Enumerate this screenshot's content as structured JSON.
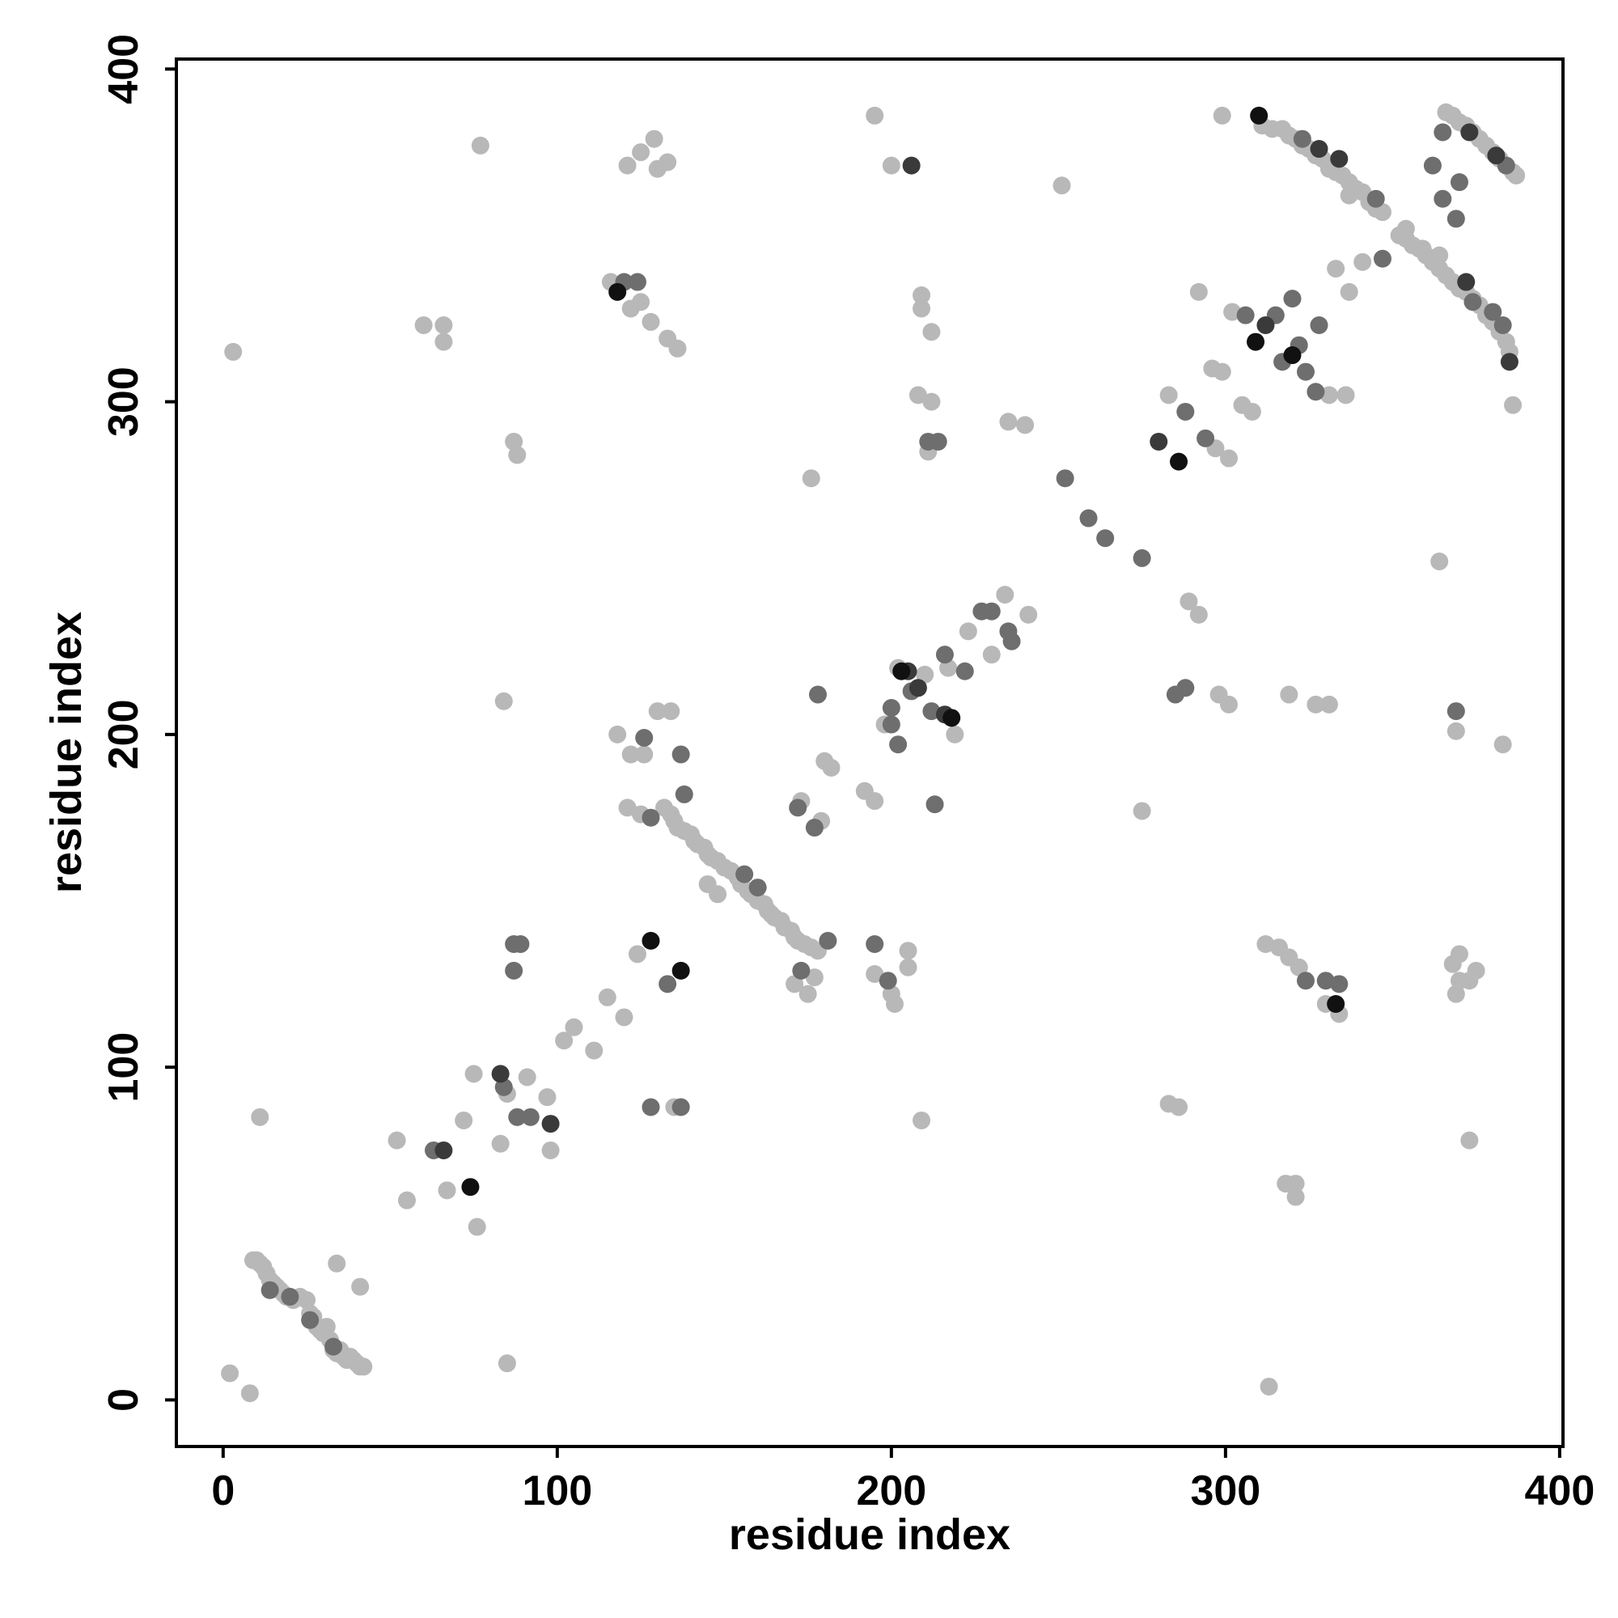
{
  "chart_data": {
    "type": "scatter",
    "xlabel": "residue index",
    "ylabel": "residue index",
    "xlim": [
      -14,
      401
    ],
    "ylim": [
      -14,
      403
    ],
    "xticks": [
      0,
      100,
      200,
      300,
      400
    ],
    "yticks": [
      0,
      100,
      200,
      300,
      400
    ],
    "grid": false,
    "series": [
      {
        "color": "#b8b8b8",
        "x": [
          2,
          8,
          11,
          34,
          41,
          85,
          9,
          10,
          11,
          12,
          13,
          14,
          15,
          16,
          17,
          18,
          19,
          21,
          23,
          25,
          26,
          27,
          28,
          29,
          30,
          31,
          32,
          33,
          34,
          35,
          36,
          37,
          38,
          39,
          40,
          41,
          42,
          52,
          55,
          67,
          72,
          76,
          75,
          83,
          85,
          91,
          97,
          98,
          102,
          105,
          111,
          115,
          120,
          124,
          135,
          132,
          134,
          135,
          136,
          138,
          140,
          141,
          142,
          144,
          145,
          146,
          148,
          150,
          152,
          154,
          155,
          157,
          158,
          160,
          162,
          163,
          164,
          165,
          167,
          168,
          170,
          171,
          172,
          174,
          176,
          178,
          145,
          148,
          121,
          125,
          118,
          122,
          126,
          130,
          134,
          173,
          179,
          177,
          175,
          171,
          180,
          182,
          192,
          195,
          198,
          202,
          210,
          217,
          219,
          223,
          230,
          234,
          241,
          195,
          200,
          201,
          205,
          205,
          209,
          121,
          125,
          129,
          133,
          130,
          116,
          125,
          128,
          133,
          136,
          122,
          60,
          66,
          66,
          3,
          77,
          87,
          88,
          84,
          195,
          200,
          209,
          209,
          212,
          208,
          212,
          211,
          251,
          235,
          240,
          176,
          275,
          283,
          297,
          301,
          296,
          299,
          305,
          308,
          292,
          302,
          331,
          336,
          333,
          341,
          337,
          311,
          314,
          317,
          319,
          321,
          323,
          325,
          327,
          329,
          331,
          333,
          335,
          337,
          339,
          341,
          343,
          345,
          347,
          352,
          354,
          356,
          358,
          360,
          362,
          364,
          366,
          368,
          370,
          372,
          374,
          376,
          378,
          380,
          382,
          384,
          385,
          366,
          368,
          370,
          372,
          374,
          376,
          378,
          380,
          382,
          384,
          386,
          299,
          387,
          386,
          289,
          292,
          298,
          301,
          319,
          327,
          331,
          364,
          369,
          383,
          283,
          286,
          373,
          312,
          316,
          319,
          322,
          330,
          334,
          321,
          318,
          321,
          313,
          368,
          370,
          370,
          373,
          375,
          369,
          337,
          354,
          359,
          364
        ],
        "values": [
          8,
          2,
          85,
          41,
          34,
          11,
          42,
          42,
          41,
          40,
          38,
          36,
          35,
          34,
          33,
          32,
          31,
          30,
          31,
          30,
          26,
          25,
          22,
          21,
          20,
          22,
          18,
          15,
          14,
          15,
          13,
          12,
          13,
          12,
          11,
          10,
          10,
          78,
          60,
          63,
          84,
          52,
          98,
          77,
          92,
          97,
          91,
          75,
          108,
          112,
          105,
          121,
          115,
          134,
          88,
          178,
          176,
          174,
          172,
          171,
          170,
          168,
          167,
          166,
          164,
          163,
          162,
          160,
          159,
          157,
          155,
          153,
          152,
          150,
          149,
          147,
          146,
          145,
          144,
          142,
          141,
          139,
          138,
          137,
          136,
          135,
          155,
          152,
          178,
          176,
          200,
          194,
          194,
          207,
          207,
          180,
          174,
          127,
          122,
          125,
          192,
          190,
          183,
          180,
          203,
          220,
          218,
          220,
          200,
          231,
          224,
          242,
          236,
          128,
          122,
          119,
          135,
          130,
          84,
          371,
          375,
          379,
          372,
          370,
          336,
          330,
          324,
          319,
          316,
          328,
          323,
          323,
          318,
          315,
          377,
          288,
          284,
          210,
          386,
          371,
          332,
          328,
          321,
          302,
          300,
          285,
          365,
          294,
          293,
          277,
          177,
          302,
          286,
          283,
          310,
          309,
          299,
          297,
          333,
          327,
          302,
          302,
          340,
          342,
          333,
          383,
          382,
          382,
          380,
          379,
          377,
          376,
          374,
          373,
          370,
          369,
          368,
          366,
          364,
          363,
          360,
          358,
          357,
          350,
          349,
          347,
          346,
          344,
          342,
          340,
          338,
          336,
          334,
          333,
          331,
          329,
          326,
          324,
          321,
          318,
          315,
          387,
          386,
          384,
          383,
          381,
          379,
          377,
          375,
          373,
          371,
          369,
          386,
          368,
          299,
          240,
          236,
          212,
          209,
          212,
          209,
          209,
          252,
          201,
          197,
          89,
          88,
          78,
          137,
          136,
          133,
          130,
          119,
          116,
          65,
          65,
          61,
          4,
          131,
          134,
          126,
          126,
          129,
          122,
          362,
          352,
          346,
          344
        ]
      },
      {
        "color": "#6e6e6e",
        "x": [
          14,
          20,
          26,
          33,
          63,
          84,
          88,
          92,
          128,
          137,
          87,
          89,
          87,
          128,
          126,
          137,
          138,
          172,
          177,
          181,
          173,
          156,
          160,
          178,
          200,
          200,
          206,
          202,
          212,
          216,
          222,
          227,
          230,
          235,
          236,
          195,
          199,
          213,
          211,
          214,
          124,
          120,
          252,
          259,
          264,
          275,
          288,
          294,
          306,
          315,
          317,
          322,
          324,
          327,
          320,
          328,
          347,
          345,
          362,
          365,
          370,
          369,
          374,
          380,
          383,
          365,
          384,
          323,
          285,
          288,
          369,
          324,
          330,
          334,
          133
        ],
        "values": [
          33,
          31,
          24,
          16,
          75,
          94,
          85,
          85,
          88,
          88,
          137,
          137,
          129,
          175,
          199,
          194,
          182,
          178,
          172,
          138,
          129,
          158,
          154,
          212,
          203,
          208,
          213,
          197,
          207,
          224,
          219,
          237,
          237,
          231,
          228,
          137,
          126,
          179,
          288,
          288,
          336,
          336,
          277,
          265,
          259,
          253,
          297,
          289,
          326,
          326,
          312,
          317,
          309,
          303,
          331,
          323,
          343,
          361,
          371,
          361,
          366,
          355,
          330,
          327,
          323,
          381,
          371,
          379,
          212,
          214,
          207,
          126,
          126,
          125,
          125
        ]
      },
      {
        "color": "#3a3a3a",
        "x": [
          66,
          83,
          98,
          205,
          216,
          208,
          280,
          312,
          328,
          334,
          372,
          385,
          373,
          381,
          206
        ],
        "values": [
          75,
          98,
          83,
          219,
          206,
          214,
          288,
          323,
          376,
          373,
          336,
          312,
          381,
          374,
          371
        ]
      },
      {
        "color": "#111111",
        "x": [
          74,
          128,
          137,
          118,
          203,
          218,
          286,
          309,
          320,
          310,
          333
        ],
        "values": [
          64,
          138,
          129,
          333,
          219,
          205,
          282,
          318,
          314,
          386,
          119
        ]
      }
    ]
  }
}
